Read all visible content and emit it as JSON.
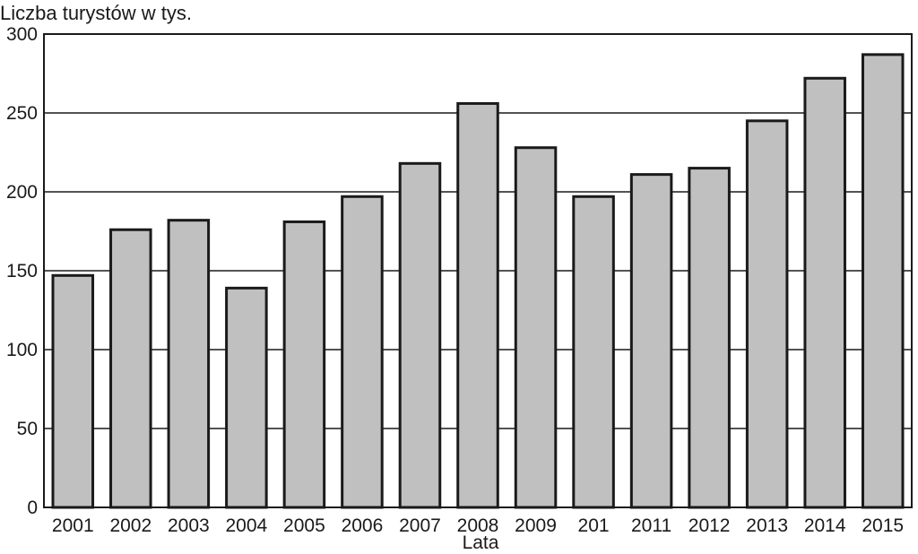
{
  "chart_data": {
    "type": "bar",
    "title": "",
    "ylabel": "Liczba turystów w tys.",
    "xlabel": "Lata",
    "categories": [
      "2001",
      "2002",
      "2003",
      "2004",
      "2005",
      "2006",
      "2007",
      "2008",
      "2009",
      "201",
      "2011",
      "2012",
      "2013",
      "2014",
      "2015"
    ],
    "values": [
      147,
      176,
      182,
      139,
      181,
      197,
      218,
      256,
      228,
      197,
      211,
      215,
      245,
      272,
      287
    ],
    "ylim": [
      0,
      300
    ],
    "yticks": [
      0,
      50,
      100,
      150,
      200,
      250,
      300
    ],
    "ytick_labels": [
      "0",
      "50",
      "100",
      "150",
      "200",
      "250",
      "300"
    ],
    "grid": true,
    "colors": {
      "bar_fill": "#c0c0c0",
      "bar_stroke": "#1a1a1a",
      "grid": "#1a1a1a"
    }
  }
}
